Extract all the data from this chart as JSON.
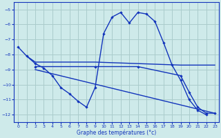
{
  "xlabel": "Graphe des températures (°c)",
  "background_color": "#ceeaea",
  "grid_color": "#aacccc",
  "line_color": "#1133bb",
  "xlim": [
    -0.5,
    23.5
  ],
  "ylim": [
    -12.5,
    -4.5
  ],
  "yticks": [
    -12,
    -11,
    -10,
    -9,
    -8,
    -7,
    -6,
    -5
  ],
  "xticks": [
    0,
    1,
    2,
    3,
    4,
    5,
    6,
    7,
    8,
    9,
    10,
    11,
    12,
    13,
    14,
    15,
    16,
    17,
    18,
    19,
    20,
    21,
    22,
    23
  ],
  "main_curve": {
    "x": [
      0,
      1,
      2,
      3,
      4,
      5,
      6,
      7,
      8,
      9,
      10,
      11,
      12,
      13,
      14,
      15,
      16,
      17,
      18,
      19,
      20,
      21,
      22,
      23
    ],
    "y": [
      -7.5,
      -8.1,
      -8.6,
      -8.9,
      -9.4,
      -10.2,
      -10.6,
      -11.1,
      -11.5,
      -10.2,
      -6.6,
      -5.5,
      -5.2,
      -5.9,
      -5.2,
      -5.3,
      -5.8,
      -7.2,
      -8.7,
      -9.7,
      -11.0,
      -11.7,
      -12.0,
      null
    ]
  },
  "line1": {
    "x": [
      1,
      2,
      9,
      19,
      22,
      23
    ],
    "y": [
      -8.1,
      -8.5,
      -8.5,
      -8.7,
      -8.7,
      -8.7
    ]
  },
  "line2": {
    "x": [
      2,
      9,
      14,
      19,
      20,
      21,
      22,
      23
    ],
    "y": [
      -8.8,
      -8.8,
      -8.8,
      -9.4,
      -10.5,
      -11.5,
      -11.9,
      -11.9
    ]
  },
  "line3": {
    "x": [
      2,
      23
    ],
    "y": [
      -9.0,
      -11.9
    ]
  }
}
